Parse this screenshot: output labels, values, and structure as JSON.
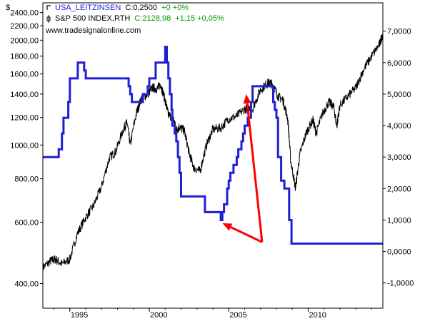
{
  "chart_data": {
    "type": "line",
    "currency_symbol": "$",
    "legend": [
      {
        "name": "USA_LEITZINSEN",
        "value_text": "C:0,2500",
        "change_text": "+0 +0%",
        "color": "#1f1fd6"
      },
      {
        "name": "S&P 500 INDEX,RTH",
        "value_text": "C:2128,98",
        "change_text": "+1,15 +0,05%",
        "color": "#000000"
      }
    ],
    "watermark": "www.tradesignalonline.com",
    "x_axis": {
      "range": [
        1993.3,
        2014.7
      ],
      "ticks": [
        1995,
        2000,
        2005,
        2010
      ],
      "tick_labels": [
        "1995",
        "2000",
        "2005",
        "2010"
      ]
    },
    "left_axis": {
      "scale": "log",
      "range": [
        340,
        2560
      ],
      "ticks": [
        400,
        600,
        800,
        1000,
        1200,
        1400,
        1600,
        1800,
        2000,
        2200,
        2400
      ],
      "tick_labels": [
        "400,00",
        "600,00",
        "800,00",
        "1000,00",
        "1200,00",
        "1400,00",
        "1600,00",
        "1800,00",
        "2000,00",
        "2200,00",
        "2400,00"
      ]
    },
    "right_axis": {
      "scale": "linear",
      "range": [
        -1.8,
        7.9
      ],
      "ticks": [
        -1,
        0,
        1,
        2,
        3,
        4,
        5,
        6,
        7
      ],
      "tick_labels": [
        "-1,0000",
        "0,0000",
        "1,0000",
        "2,0000",
        "3,0000",
        "4,0000",
        "5,0000",
        "6,0000",
        "7,0000"
      ]
    },
    "series": [
      {
        "name": "USA_LEITZINSEN",
        "axis": "right",
        "color": "#1f1fd6",
        "x": [
          1993.3,
          1994.1,
          1994.3,
          1994.5,
          1994.6,
          1994.9,
          1995.0,
          1995.5,
          1995.9,
          1996.0,
          1997.2,
          1998.7,
          1998.8,
          1998.9,
          1999.5,
          1999.6,
          1999.9,
          2000.0,
          2000.4,
          2001.0,
          2001.1,
          2001.2,
          2001.3,
          2001.4,
          2001.45,
          2001.6,
          2001.7,
          2001.8,
          2001.9,
          2002.0,
          2002.9,
          2003.5,
          2004.5,
          2004.6,
          2004.7,
          2004.9,
          2005.0,
          2005.1,
          2005.3,
          2005.5,
          2005.6,
          2005.8,
          2005.9,
          2006.0,
          2006.2,
          2006.4,
          2006.5,
          2007.7,
          2007.8,
          2007.9,
          2008.0,
          2008.1,
          2008.3,
          2008.5,
          2008.8,
          2008.95,
          2014.7
        ],
        "y": [
          3.0,
          3.0,
          3.25,
          3.75,
          4.25,
          4.75,
          5.5,
          6.0,
          5.75,
          5.5,
          5.5,
          5.25,
          5.0,
          4.75,
          4.75,
          5.0,
          5.25,
          5.5,
          6.0,
          6.5,
          6.0,
          5.5,
          5.0,
          4.5,
          4.0,
          3.75,
          3.5,
          3.0,
          2.5,
          1.75,
          1.75,
          1.25,
          1.0,
          1.25,
          1.5,
          2.0,
          2.25,
          2.5,
          2.75,
          3.0,
          3.25,
          3.5,
          3.75,
          4.0,
          4.25,
          4.75,
          5.25,
          5.25,
          4.75,
          4.5,
          4.25,
          3.0,
          2.25,
          2.0,
          1.0,
          0.25,
          0.25
        ]
      },
      {
        "name": "S&P 500 INDEX",
        "axis": "left",
        "color": "#000000",
        "x": [
          1993.3,
          1993.8,
          1994.1,
          1994.5,
          1995.0,
          1995.5,
          1996.0,
          1996.5,
          1997.0,
          1997.5,
          1997.9,
          1998.4,
          1998.6,
          1998.8,
          1999.2,
          1999.5,
          1999.9,
          2000.2,
          2000.5,
          2000.7,
          2001.0,
          2001.2,
          2001.5,
          2001.7,
          2001.9,
          2002.2,
          2002.5,
          2002.8,
          2003.2,
          2003.6,
          2004.0,
          2004.5,
          2005.0,
          2005.5,
          2006.0,
          2006.5,
          2007.0,
          2007.4,
          2007.6,
          2007.8,
          2008.1,
          2008.4,
          2008.7,
          2008.9,
          2009.2,
          2009.5,
          2009.9,
          2010.3,
          2010.5,
          2010.9,
          2011.3,
          2011.6,
          2011.8,
          2012.0,
          2012.5,
          2013.0,
          2013.5,
          2014.0,
          2014.5,
          2014.7
        ],
        "y": [
          445,
          465,
          470,
          455,
          470,
          560,
          620,
          670,
          760,
          920,
          960,
          1120,
          1160,
          1000,
          1240,
          1360,
          1400,
          1460,
          1450,
          1500,
          1340,
          1220,
          1200,
          1100,
          1130,
          1100,
          950,
          860,
          840,
          1000,
          1110,
          1120,
          1190,
          1210,
          1270,
          1270,
          1440,
          1500,
          1510,
          1480,
          1380,
          1350,
          1200,
          900,
          750,
          950,
          1090,
          1180,
          1080,
          1230,
          1330,
          1290,
          1130,
          1300,
          1380,
          1460,
          1650,
          1800,
          1950,
          2100
        ]
      }
    ],
    "annotations": [
      {
        "type": "arrow",
        "color": "#ff0000",
        "from": [
          2007.1,
          0.3
        ],
        "to": [
          2006.1,
          5.0
        ]
      },
      {
        "type": "arrow",
        "color": "#ff0000",
        "from": [
          2007.1,
          0.3
        ],
        "to": [
          2004.6,
          0.9
        ]
      }
    ]
  }
}
